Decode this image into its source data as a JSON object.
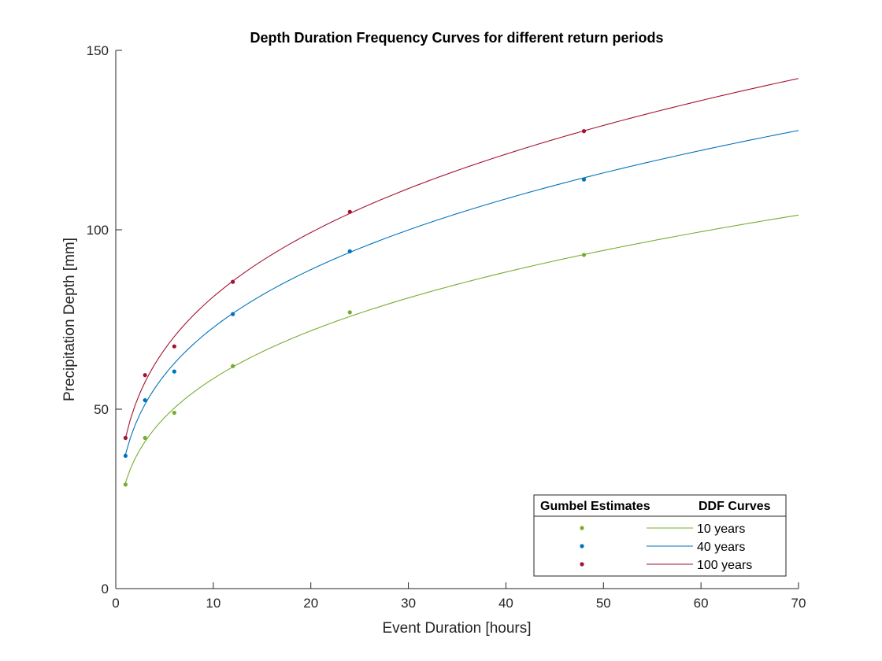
{
  "chart_data": {
    "type": "line",
    "title": "Depth Duration Frequency Curves for different return periods",
    "xlabel": "Event Duration [hours]",
    "ylabel": "Precipitation Depth [mm]",
    "xlim": [
      0,
      70
    ],
    "ylim": [
      0,
      150
    ],
    "xticks": [
      0,
      10,
      20,
      30,
      40,
      50,
      60,
      70
    ],
    "yticks": [
      0,
      50,
      100,
      150
    ],
    "grid": false,
    "legend": {
      "placement": "bottom-right",
      "header_left": "Gumbel Estimates",
      "header_right": "DDF Curves"
    },
    "estimate_durations": [
      1,
      3,
      6,
      12,
      24,
      48
    ],
    "series": [
      {
        "name": "10 years",
        "color": "#77ac30",
        "estimates": [
          29,
          42,
          49,
          62,
          77,
          93
        ],
        "curve": {
          "a": 29.6,
          "n": 0.296
        }
      },
      {
        "name": "40 years",
        "color": "#0072bd",
        "estimates": [
          37,
          52.5,
          60.5,
          76.5,
          94,
          114
        ],
        "curve": {
          "a": 37.4,
          "n": 0.289
        }
      },
      {
        "name": "100 years",
        "color": "#a2142f",
        "estimates": [
          42,
          59.5,
          67.5,
          85.5,
          105,
          127.5
        ],
        "curve": {
          "a": 42.0,
          "n": 0.287
        }
      }
    ]
  }
}
